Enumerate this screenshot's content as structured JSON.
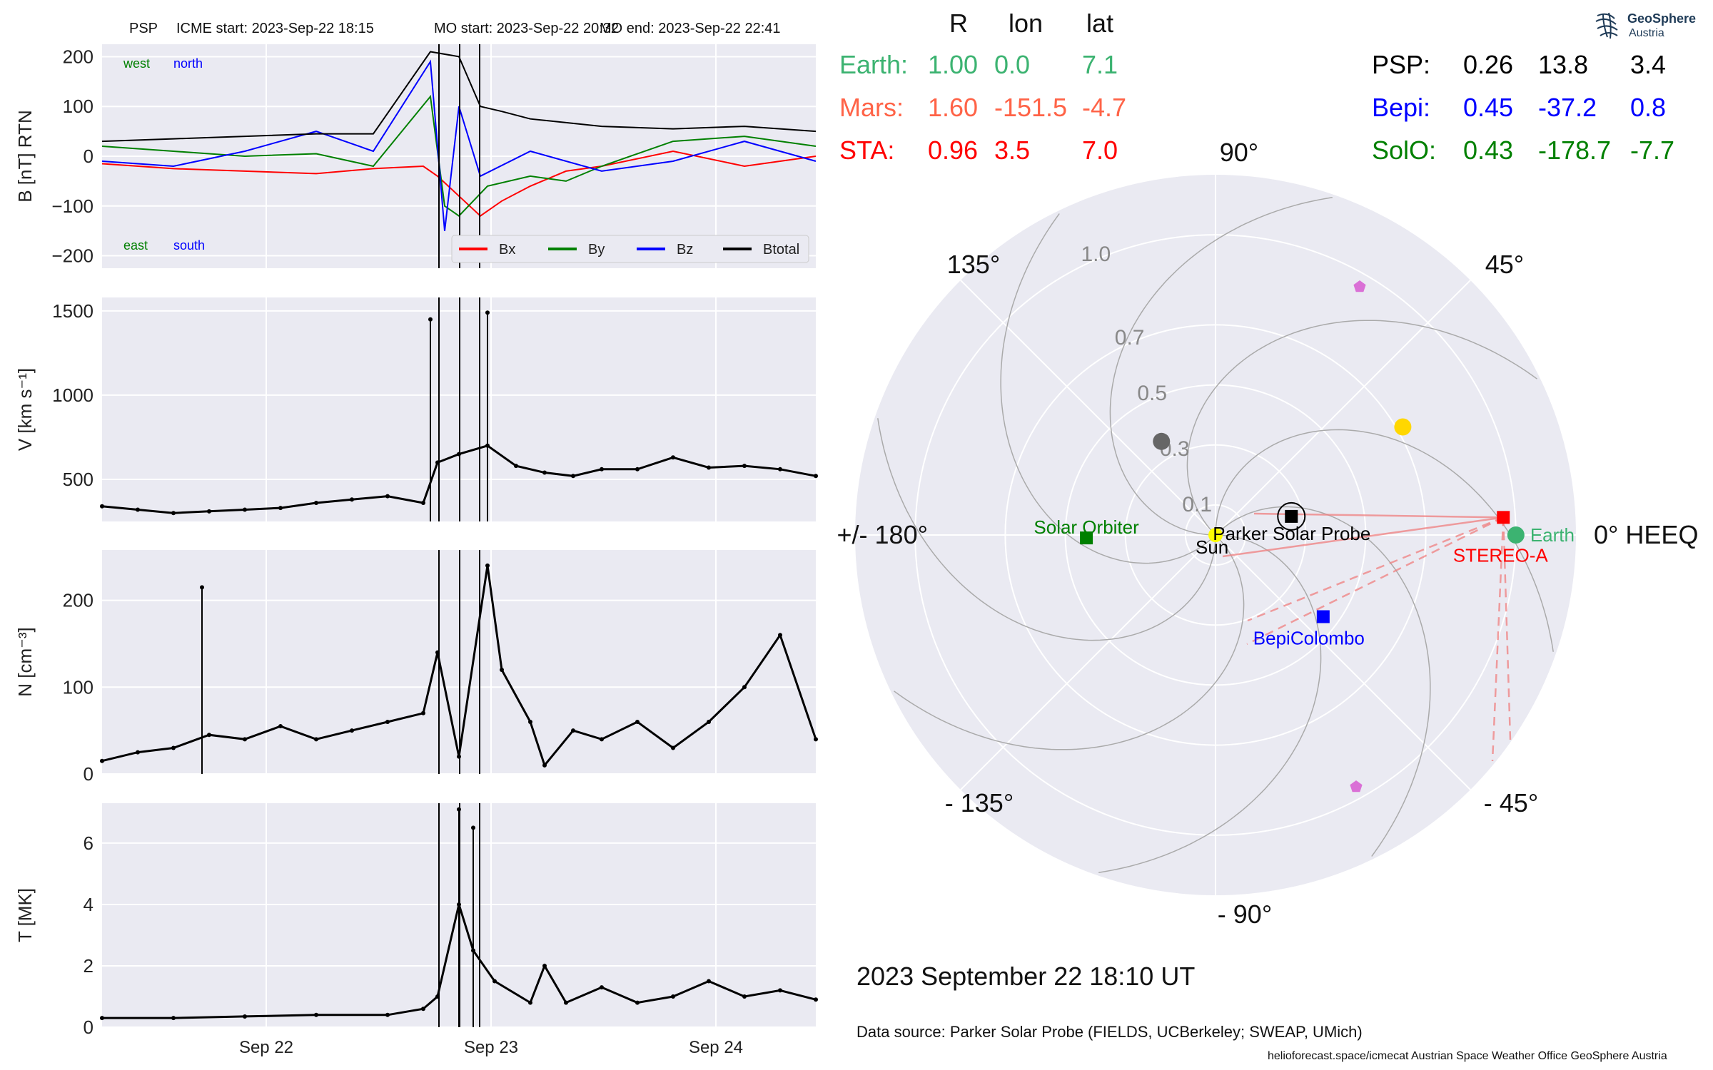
{
  "header": {
    "spacecraft": "PSP",
    "icme_start": "ICME start: 2023-Sep-22 18:15",
    "mo_start": "MO start: 2023-Sep-22 20:32",
    "mo_end": "MO end: 2023-Sep-22 22:41"
  },
  "logo": {
    "line1": "GeoSphere",
    "line2": "Austria"
  },
  "positions_table": {
    "headers": [
      "R",
      "lon",
      "lat"
    ],
    "left": [
      {
        "label": "Earth:",
        "r": "1.00",
        "lon": "0.0",
        "lat": "7.1",
        "color": "#3cb371"
      },
      {
        "label": "Mars:",
        "r": "1.60",
        "lon": "-151.5",
        "lat": "-4.7",
        "color": "#ff6347"
      },
      {
        "label": "STA:",
        "r": "0.96",
        "lon": "3.5",
        "lat": "7.0",
        "color": "#ff0000"
      }
    ],
    "right": [
      {
        "label": "PSP:",
        "r": "0.26",
        "lon": "13.8",
        "lat": "3.4",
        "color": "#000000"
      },
      {
        "label": "Bepi:",
        "r": "0.45",
        "lon": "-37.2",
        "lat": "0.8",
        "color": "#0000ff"
      },
      {
        "label": "SolO:",
        "r": "0.43",
        "lon": "-178.7",
        "lat": "-7.7",
        "color": "#008000"
      }
    ]
  },
  "date_label": "2023 September 22  18:10 UT",
  "data_source": "Data source: Parker Solar Probe (FIELDS, UCBerkeley; SWEAP, UMich)",
  "credits": "helioforecast.space/icmecat   Austrian Space Weather Office   GeoSphere Austria",
  "chart_data": [
    {
      "type": "line",
      "id": "B",
      "ylabel": "B [nT] RTN",
      "ylim": [
        -225,
        225
      ],
      "yticks": [
        "200",
        "100",
        "0",
        "−100",
        "−200"
      ],
      "ytick_values": [
        200,
        100,
        0,
        -100,
        -200
      ],
      "corner_labels": {
        "west": "west",
        "north": "north",
        "east": "east",
        "south": "south"
      },
      "legend": [
        "Bx",
        "By",
        "Bz",
        "Btotal"
      ],
      "series": [
        {
          "name": "Bx",
          "color": "#ff0000",
          "values": [
            [
              0,
              -15
            ],
            [
              0.1,
              -25
            ],
            [
              0.2,
              -30
            ],
            [
              0.3,
              -35
            ],
            [
              0.38,
              -25
            ],
            [
              0.45,
              -20
            ],
            [
              0.47,
              -40
            ],
            [
              0.5,
              -80
            ],
            [
              0.53,
              -120
            ],
            [
              0.56,
              -90
            ],
            [
              0.6,
              -60
            ],
            [
              0.65,
              -30
            ],
            [
              0.7,
              -20
            ],
            [
              0.8,
              10
            ],
            [
              0.9,
              -20
            ],
            [
              1.0,
              0
            ]
          ]
        },
        {
          "name": "By",
          "color": "#008000",
          "values": [
            [
              0,
              20
            ],
            [
              0.1,
              10
            ],
            [
              0.2,
              0
            ],
            [
              0.3,
              5
            ],
            [
              0.38,
              -20
            ],
            [
              0.46,
              120
            ],
            [
              0.48,
              -100
            ],
            [
              0.5,
              -120
            ],
            [
              0.54,
              -60
            ],
            [
              0.6,
              -40
            ],
            [
              0.65,
              -50
            ],
            [
              0.7,
              -20
            ],
            [
              0.8,
              30
            ],
            [
              0.9,
              40
            ],
            [
              1.0,
              20
            ]
          ]
        },
        {
          "name": "Bz",
          "color": "#0000ff",
          "values": [
            [
              0,
              -10
            ],
            [
              0.1,
              -20
            ],
            [
              0.2,
              10
            ],
            [
              0.3,
              50
            ],
            [
              0.38,
              10
            ],
            [
              0.46,
              190
            ],
            [
              0.48,
              -150
            ],
            [
              0.5,
              100
            ],
            [
              0.53,
              -40
            ],
            [
              0.6,
              10
            ],
            [
              0.7,
              -30
            ],
            [
              0.8,
              -10
            ],
            [
              0.9,
              30
            ],
            [
              1.0,
              -10
            ]
          ]
        },
        {
          "name": "Btotal",
          "color": "#000000",
          "values": [
            [
              0,
              30
            ],
            [
              0.1,
              35
            ],
            [
              0.2,
              40
            ],
            [
              0.3,
              45
            ],
            [
              0.38,
              45
            ],
            [
              0.46,
              210
            ],
            [
              0.5,
              200
            ],
            [
              0.53,
              100
            ],
            [
              0.56,
              90
            ],
            [
              0.6,
              75
            ],
            [
              0.7,
              60
            ],
            [
              0.8,
              55
            ],
            [
              0.9,
              60
            ],
            [
              1.0,
              50
            ]
          ]
        }
      ]
    },
    {
      "type": "scatter",
      "id": "V",
      "ylabel": "V [km s⁻¹]",
      "ylim": [
        250,
        1580
      ],
      "yticks": [
        "1500",
        "1000",
        "500"
      ],
      "ytick_values": [
        1500,
        1000,
        500
      ],
      "series": [
        {
          "name": "V",
          "values": [
            [
              0,
              340
            ],
            [
              0.05,
              320
            ],
            [
              0.1,
              300
            ],
            [
              0.15,
              310
            ],
            [
              0.2,
              320
            ],
            [
              0.25,
              330
            ],
            [
              0.3,
              360
            ],
            [
              0.35,
              380
            ],
            [
              0.4,
              400
            ],
            [
              0.45,
              360
            ],
            [
              0.47,
              600
            ],
            [
              0.5,
              650
            ],
            [
              0.54,
              700
            ],
            [
              0.58,
              580
            ],
            [
              0.62,
              540
            ],
            [
              0.66,
              520
            ],
            [
              0.7,
              560
            ],
            [
              0.75,
              560
            ],
            [
              0.8,
              630
            ],
            [
              0.85,
              570
            ],
            [
              0.9,
              580
            ],
            [
              0.95,
              560
            ],
            [
              1.0,
              520
            ]
          ]
        }
      ],
      "spikes": [
        [
          0.46,
          1450
        ],
        [
          0.54,
          1490
        ]
      ]
    },
    {
      "type": "scatter",
      "id": "N",
      "ylabel": "N [cm⁻³]",
      "ylim": [
        0,
        258
      ],
      "yticks": [
        "200",
        "100",
        "0"
      ],
      "ytick_values": [
        200,
        100,
        0
      ],
      "series": [
        {
          "name": "N",
          "values": [
            [
              0,
              15
            ],
            [
              0.05,
              25
            ],
            [
              0.1,
              30
            ],
            [
              0.15,
              45
            ],
            [
              0.2,
              40
            ],
            [
              0.25,
              55
            ],
            [
              0.3,
              40
            ],
            [
              0.35,
              50
            ],
            [
              0.4,
              60
            ],
            [
              0.45,
              70
            ],
            [
              0.47,
              140
            ],
            [
              0.5,
              20
            ],
            [
              0.54,
              240
            ],
            [
              0.56,
              120
            ],
            [
              0.6,
              60
            ],
            [
              0.62,
              10
            ],
            [
              0.66,
              50
            ],
            [
              0.7,
              40
            ],
            [
              0.75,
              60
            ],
            [
              0.8,
              30
            ],
            [
              0.85,
              60
            ],
            [
              0.9,
              100
            ],
            [
              0.95,
              160
            ],
            [
              1.0,
              40
            ]
          ]
        }
      ],
      "spikes": [
        [
          0.14,
          215
        ]
      ]
    },
    {
      "type": "scatter",
      "id": "T",
      "ylabel": "T [MK]",
      "ylim": [
        0,
        7.3
      ],
      "yticks": [
        "6",
        "4",
        "2",
        "0"
      ],
      "ytick_values": [
        6,
        4,
        2,
        0
      ],
      "xticks": [
        "Sep 22",
        "Sep 23",
        "Sep 24"
      ],
      "xtick_positions": [
        0.23,
        0.545,
        0.86
      ],
      "series": [
        {
          "name": "T",
          "values": [
            [
              0,
              0.3
            ],
            [
              0.1,
              0.3
            ],
            [
              0.2,
              0.35
            ],
            [
              0.3,
              0.4
            ],
            [
              0.4,
              0.4
            ],
            [
              0.45,
              0.6
            ],
            [
              0.47,
              1.0
            ],
            [
              0.5,
              4.0
            ],
            [
              0.52,
              2.5
            ],
            [
              0.55,
              1.5
            ],
            [
              0.6,
              0.8
            ],
            [
              0.62,
              2.0
            ],
            [
              0.65,
              0.8
            ],
            [
              0.7,
              1.3
            ],
            [
              0.75,
              0.8
            ],
            [
              0.8,
              1.0
            ],
            [
              0.85,
              1.5
            ],
            [
              0.9,
              1.0
            ],
            [
              0.95,
              1.2
            ],
            [
              1.0,
              0.9
            ]
          ]
        }
      ],
      "spikes": [
        [
          0.5,
          7.1
        ],
        [
          0.52,
          6.5
        ]
      ]
    },
    {
      "type": "polar",
      "id": "heeq",
      "angle_labels": {
        "deg0": "0° HEEQ",
        "deg45": "45°",
        "deg90": "90°",
        "deg135": "135°",
        "deg180": "+/- 180°",
        "degm135": "- 135°",
        "degm90": "- 90°",
        "degm45": "- 45°"
      },
      "radial_labels": [
        "0.1",
        "0.3",
        "0.5",
        "0.7",
        "1.0"
      ],
      "radial_values": [
        0.1,
        0.3,
        0.5,
        0.7,
        1.0
      ],
      "bodies": [
        {
          "name": "Sun",
          "label": "Sun",
          "r": 0.0,
          "lon": 0,
          "color": "#ffff00",
          "marker": "circle"
        },
        {
          "name": "Earth",
          "label": "Earth",
          "r": 1.0,
          "lon": 0.0,
          "color": "#3cb371",
          "marker": "circle"
        },
        {
          "name": "STEREO-A",
          "label": "STEREO-A",
          "r": 0.96,
          "lon": 3.5,
          "color": "#ff0000",
          "marker": "square"
        },
        {
          "name": "Parker Solar Probe",
          "label": "Parker Solar Probe",
          "r": 0.26,
          "lon": 13.8,
          "color": "#000000",
          "marker": "square"
        },
        {
          "name": "BepiColombo",
          "label": "BepiColombo",
          "r": 0.45,
          "lon": -37.2,
          "color": "#0000ff",
          "marker": "square"
        },
        {
          "name": "Solar Orbiter",
          "label": "Solar Orbiter",
          "r": 0.43,
          "lon": -178.7,
          "color": "#008000",
          "marker": "square"
        },
        {
          "name": "Mercury",
          "label": "",
          "r": 0.36,
          "lon": 120,
          "color": "#666666",
          "marker": "circle"
        },
        {
          "name": "Venus",
          "label": "",
          "r": 0.72,
          "lon": 30,
          "color": "#ffd700",
          "marker": "circle"
        }
      ]
    }
  ]
}
